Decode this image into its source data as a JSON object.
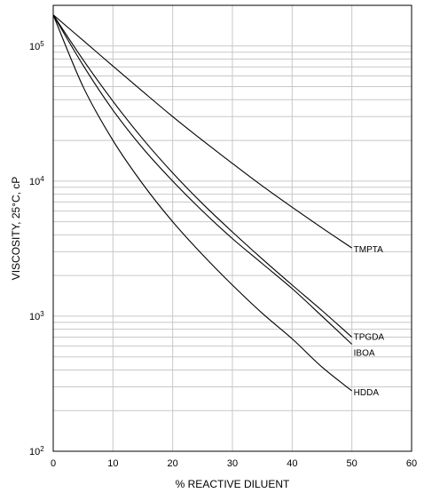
{
  "chart_data": {
    "type": "line",
    "xlabel": "% REACTIVE DILUENT",
    "ylabel": "VISCOSITY, 25°C, cP",
    "x_scale": "linear",
    "y_scale": "log",
    "xlim": [
      0,
      60
    ],
    "ylim": [
      100,
      200000
    ],
    "x_ticks": [
      0,
      10,
      20,
      30,
      40,
      50,
      60
    ],
    "y_ticks": [
      {
        "value": 100,
        "base": "10",
        "exp": "2"
      },
      {
        "value": 1000,
        "base": "10",
        "exp": "3"
      },
      {
        "value": 10000,
        "base": "10",
        "exp": "4"
      },
      {
        "value": 100000,
        "base": "10",
        "exp": "5"
      }
    ],
    "grid": true,
    "line_color": "#000000",
    "grid_color": "#c8c8c8",
    "series": [
      {
        "name": "TMPTA",
        "x": [
          0,
          5,
          10,
          15,
          20,
          25,
          30,
          35,
          40,
          45,
          50
        ],
        "y": [
          170000,
          110000,
          71000,
          46000,
          30000,
          20000,
          13500,
          9200,
          6400,
          4500,
          3200
        ]
      },
      {
        "name": "TPGDA",
        "x": [
          0,
          5,
          10,
          15,
          20,
          25,
          30,
          35,
          40,
          45,
          50
        ],
        "y": [
          170000,
          79000,
          39000,
          20500,
          11500,
          6800,
          4200,
          2650,
          1700,
          1100,
          700
        ]
      },
      {
        "name": "IBOA",
        "x": [
          0,
          5,
          10,
          15,
          20,
          25,
          30,
          35,
          40,
          45,
          50
        ],
        "y": [
          170000,
          72000,
          33500,
          17500,
          10000,
          6000,
          3750,
          2450,
          1600,
          1000,
          620
        ]
      },
      {
        "name": "HDDA",
        "x": [
          0,
          5,
          10,
          15,
          20,
          25,
          30,
          35,
          40,
          45,
          50
        ],
        "y": [
          170000,
          50000,
          20000,
          9500,
          5000,
          2850,
          1700,
          1050,
          680,
          420,
          280
        ]
      }
    ]
  }
}
